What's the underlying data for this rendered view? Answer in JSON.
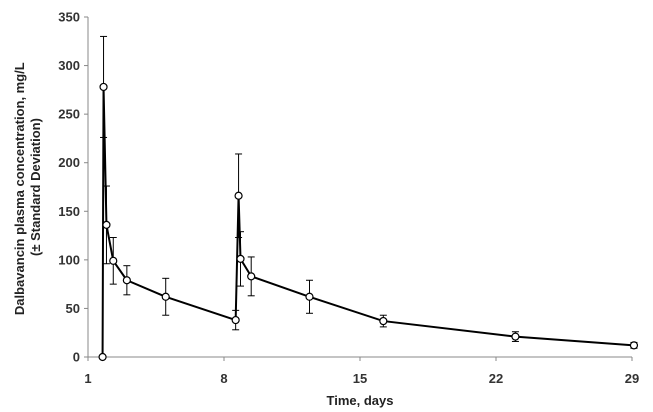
{
  "chart_data": {
    "type": "line",
    "xlabel": "Time, days",
    "ylabel_lines": [
      "Dalbavancin plasma concentration, mg/L",
      "(± Standard Deviation)"
    ],
    "xlim": [
      1,
      29
    ],
    "ylim": [
      0,
      350
    ],
    "x_ticks": [
      1,
      8,
      15,
      22,
      29
    ],
    "y_ticks": [
      0,
      50,
      100,
      150,
      200,
      250,
      300,
      350
    ],
    "grid": false,
    "legend": "none",
    "colors": {
      "line": "#000000",
      "marker_fill": "#ffffff",
      "axis": "#888888"
    },
    "series": [
      {
        "points": [
          {
            "x": 1.75,
            "y": 0
          },
          {
            "x": 1.8,
            "y": 278,
            "sd": 52
          },
          {
            "x": 1.95,
            "y": 136,
            "sd": 40
          },
          {
            "x": 2.3,
            "y": 99,
            "sd": 24
          },
          {
            "x": 3.0,
            "y": 79,
            "sd": 15
          },
          {
            "x": 5.0,
            "y": 62,
            "sd": 19
          },
          {
            "x": 8.6,
            "y": 38,
            "sd": 10
          },
          {
            "x": 8.75,
            "y": 166,
            "sd": 43
          },
          {
            "x": 8.85,
            "y": 101,
            "sd": 28
          },
          {
            "x": 9.4,
            "y": 83,
            "sd": 20
          },
          {
            "x": 12.4,
            "y": 62,
            "sd": 17
          },
          {
            "x": 16.2,
            "y": 37,
            "sd": 6
          },
          {
            "x": 23.0,
            "y": 21,
            "sd": 5
          },
          {
            "x": 29.1,
            "y": 12,
            "sd": 3
          }
        ]
      }
    ]
  }
}
